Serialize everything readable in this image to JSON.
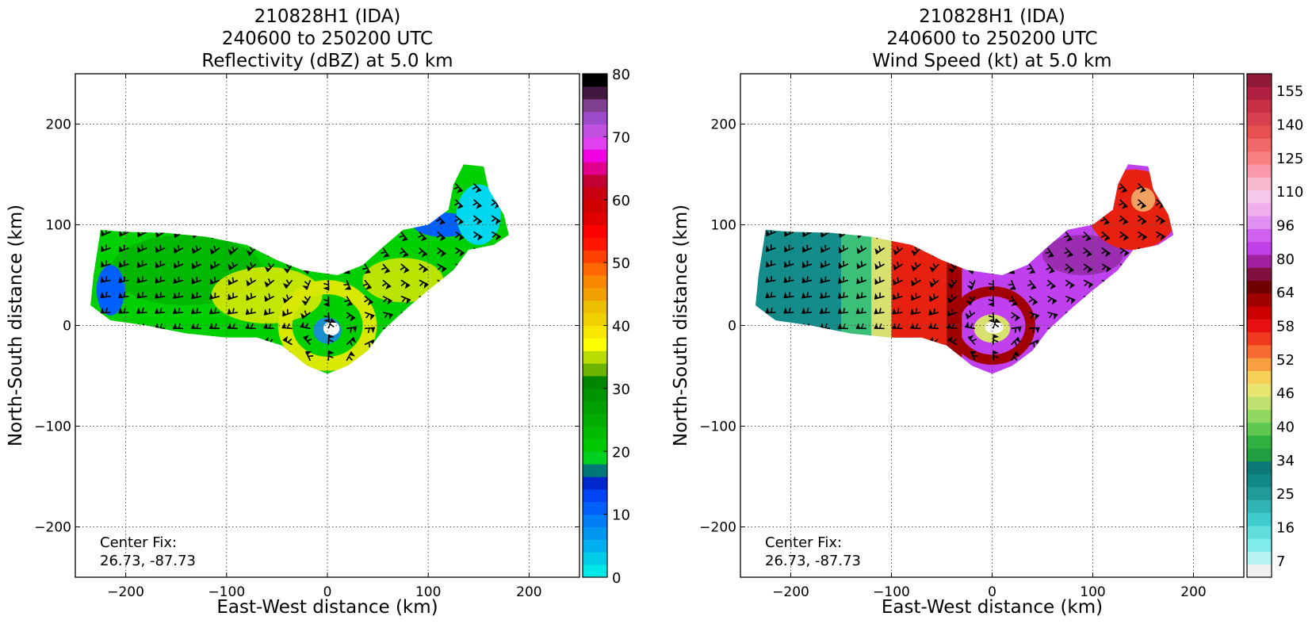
{
  "chart_data": [
    {
      "type": "heatmap",
      "title_lines": [
        "210828H1 (IDA)",
        "240600 to 250200 UTC",
        "Reflectivity (dBZ) at 5.0 km"
      ],
      "xlabel": "East-West distance (km)",
      "ylabel": "North-South distance (km)",
      "xlim": [
        -250,
        250
      ],
      "ylim": [
        -250,
        250
      ],
      "xticks": [
        -200,
        -100,
        0,
        100,
        200
      ],
      "yticks": [
        -200,
        -100,
        0,
        100,
        200
      ],
      "xtick_labels": [
        "−200",
        "−100",
        "0",
        "100",
        "200"
      ],
      "ytick_labels": [
        "−200",
        "−100",
        "0",
        "100",
        "200"
      ],
      "grid": true,
      "annotation_lines": [
        "Center Fix:",
        "26.73, -87.73"
      ],
      "colorbar": {
        "min": 0,
        "max": 80,
        "ticks": [
          0,
          10,
          20,
          30,
          40,
          50,
          60,
          70,
          80
        ],
        "tick_labels": [
          "0",
          "10",
          "20",
          "30",
          "40",
          "50",
          "60",
          "70",
          "80"
        ],
        "colors": [
          "#00e8e8",
          "#00cce8",
          "#00b0ee",
          "#0096f0",
          "#007cf4",
          "#0060f8",
          "#0044f4",
          "#0028cc",
          "#007878",
          "#00d020",
          "#00c800",
          "#00bb00",
          "#00ad00",
          "#00a000",
          "#009300",
          "#008600",
          "#6cb400",
          "#b8dc00",
          "#ffff00",
          "#f8e800",
          "#f0d000",
          "#ecc000",
          "#f0a000",
          "#f88800",
          "#ff6800",
          "#ff4000",
          "#ff1400",
          "#ff0000",
          "#e00000",
          "#d00000",
          "#c80010",
          "#c00030",
          "#e0008c",
          "#f000e0",
          "#e040f0",
          "#c050e0",
          "#9c4cc8",
          "#804090",
          "#401840",
          "#000000"
        ]
      },
      "field_colors": [
        "#00d000",
        "#00b400",
        "#d8e800",
        "#0060ff",
        "#00d8f0",
        "#1890d0"
      ]
    },
    {
      "type": "heatmap",
      "title_lines": [
        "210828H1 (IDA)",
        "240600 to 250200 UTC",
        "Wind Speed (kt) at 5.0 km"
      ],
      "xlabel": "East-West distance (km)",
      "ylabel": "North-South distance (km)",
      "xlim": [
        -250,
        250
      ],
      "ylim": [
        -250,
        250
      ],
      "xticks": [
        -200,
        -100,
        0,
        100,
        200
      ],
      "yticks": [
        -200,
        -100,
        0,
        100,
        200
      ],
      "xtick_labels": [
        "−200",
        "−100",
        "0",
        "100",
        "200"
      ],
      "ytick_labels": [
        "−200",
        "−100",
        "0",
        "100",
        "200"
      ],
      "grid": true,
      "annotation_lines": [
        "Center Fix:",
        "26.73, -87.73"
      ],
      "colorbar": {
        "levels": 30,
        "tick_indices": [
          0,
          3,
          6,
          9,
          12,
          15,
          18,
          21,
          24,
          27,
          30,
          33,
          36,
          39,
          42
        ],
        "tick_labels": [
          "7",
          "16",
          "25",
          "34",
          "40",
          "46",
          "52",
          "58",
          "64",
          "80",
          "96",
          "110",
          "125",
          "140",
          "155"
        ],
        "colors": [
          "#f0f0f0",
          "#b8f4f4",
          "#80ecec",
          "#60dede",
          "#40cccc",
          "#30b4b4",
          "#209a9a",
          "#108888",
          "#0c7878",
          "#20a040",
          "#30b040",
          "#60c850",
          "#90d860",
          "#c0e070",
          "#e8e470",
          "#f8d058",
          "#f8a040",
          "#f86a30",
          "#f03a20",
          "#e81010",
          "#cc0000",
          "#a00000",
          "#700000",
          "#801040",
          "#a020a0",
          "#c040e8",
          "#d060f0",
          "#e090f0",
          "#f0b0f0",
          "#f8c8ec",
          "#f8b8d0",
          "#f898a8",
          "#f88080",
          "#f06868",
          "#e85050",
          "#d84050",
          "#c83048",
          "#b02040",
          "#901838"
        ],
        "top_label_index": 39
      },
      "field_colors": [
        "#148c8c",
        "#3cc078",
        "#d8e070",
        "#e82010",
        "#a00000",
        "#c040f0",
        "#9028a0"
      ]
    }
  ]
}
